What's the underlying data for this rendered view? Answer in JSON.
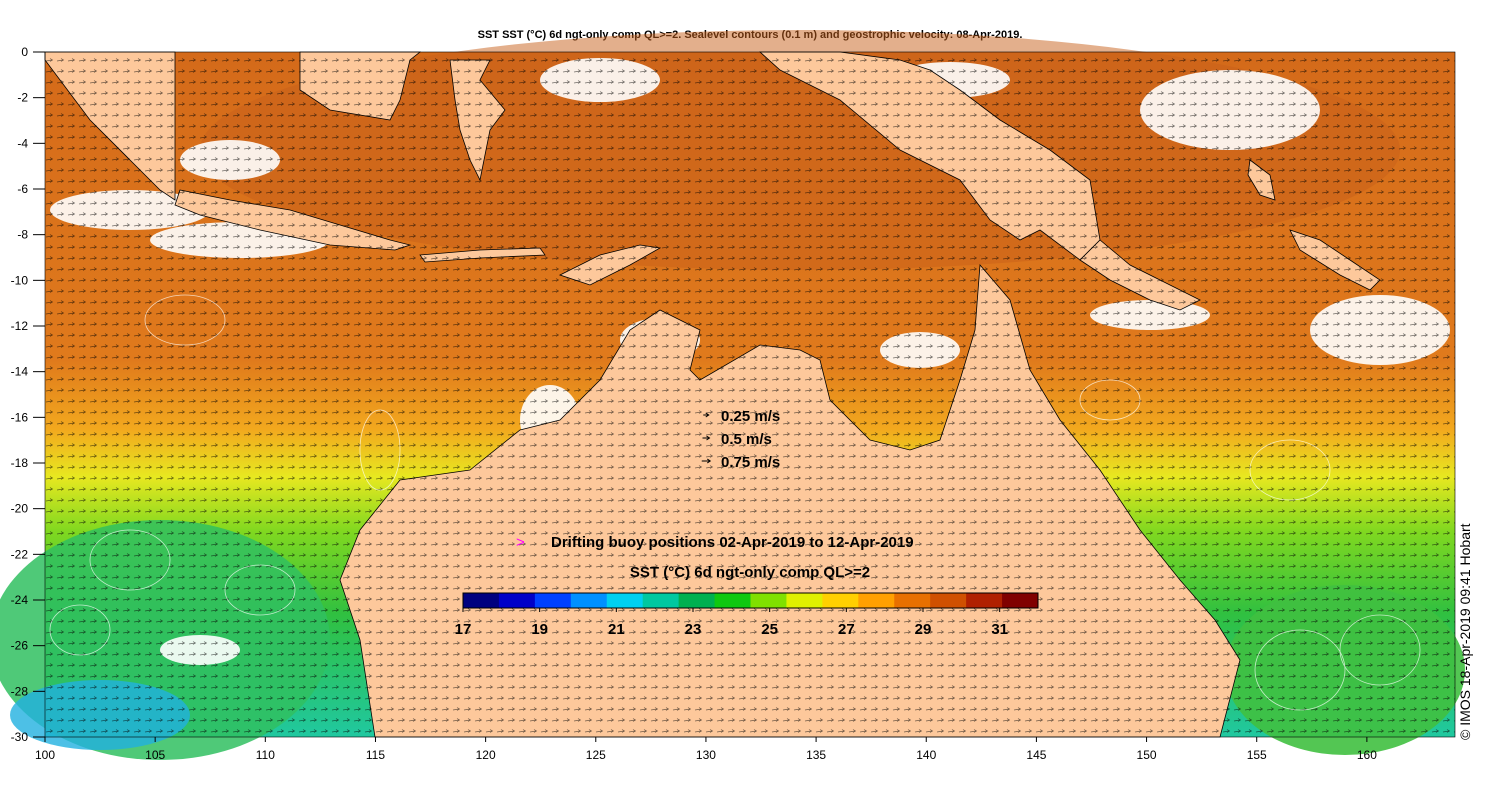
{
  "title": "SST SST (°C) 6d ngt-only comp QL>=2. Sealevel contours (0.1 m) and geostrophic velocity: 08-Apr-2019.",
  "credit": "© IMOS 18-Apr-2019 09:41 Hobart",
  "axes": {
    "lon_ticks": [
      "100",
      "105",
      "110",
      "115",
      "120",
      "125",
      "130",
      "135",
      "140",
      "145",
      "150",
      "155",
      "160"
    ],
    "lat_ticks": [
      "0",
      "-2",
      "-4",
      "-6",
      "-8",
      "-10",
      "-12",
      "-14",
      "-16",
      "-18",
      "-20",
      "-22",
      "-24",
      "-26",
      "-28",
      "-30"
    ],
    "lon_range": [
      100,
      164
    ],
    "lat_range": [
      -30,
      0
    ]
  },
  "velocity_legend": [
    {
      "label": "0.25 m/s",
      "speed": 0.25
    },
    {
      "label": "0.5 m/s",
      "speed": 0.5
    },
    {
      "label": "0.75 m/s",
      "speed": 0.75
    }
  ],
  "buoy_legend": {
    "symbol": ">",
    "label": "Drifting buoy positions 02-Apr-2019 to 12-Apr-2019",
    "color": "#ff00ff"
  },
  "colorbar": {
    "title": "SST (°C) 6d ngt-only comp QL>=2",
    "min": 17,
    "max": 32,
    "tick_labels": [
      "17",
      "19",
      "21",
      "23",
      "25",
      "27",
      "29",
      "31"
    ],
    "colors": [
      "#00007f",
      "#0000c8",
      "#0040ff",
      "#0090ff",
      "#00d0f0",
      "#00c8a0",
      "#00b050",
      "#10c810",
      "#80e000",
      "#e0f000",
      "#ffd000",
      "#ffa000",
      "#e87000",
      "#d05000",
      "#b02000",
      "#800000"
    ]
  },
  "colors": {
    "land": "#fdc89b",
    "ocean_warm": "#d9701a",
    "ocean_mid": "#f0a020",
    "ocean_cool": "#40c040",
    "cloud": "#ffffff"
  }
}
